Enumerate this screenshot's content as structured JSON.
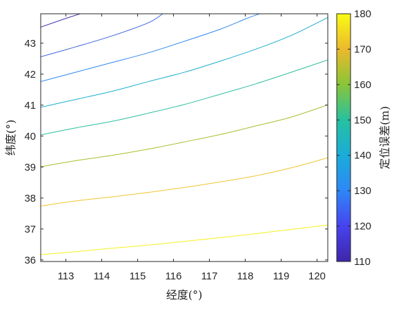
{
  "chart_data": {
    "type": "contour",
    "xlabel": "经度(°)",
    "ylabel": "纬度(°)",
    "colorbar_label": "定位误差(m)",
    "xlim": [
      112.3,
      120.3
    ],
    "ylim": [
      35.95,
      43.95
    ],
    "x_ticks": [
      "113",
      "114",
      "115",
      "116",
      "117",
      "118",
      "119",
      "120"
    ],
    "y_ticks": [
      "36",
      "37",
      "38",
      "39",
      "40",
      "41",
      "42",
      "43"
    ],
    "colorbar_range": [
      110,
      180
    ],
    "colorbar_ticks": [
      "110",
      "120",
      "130",
      "140",
      "150",
      "160",
      "170",
      "180"
    ],
    "colormap": [
      "#3e26a8",
      "#4743f0",
      "#2e87f7",
      "#1aacd9",
      "#27c1a0",
      "#89c538",
      "#ecb92c",
      "#f9fb15"
    ],
    "grid": false,
    "levels": [
      {
        "value": 175,
        "color": "#f5f01d",
        "points": [
          [
            112.3,
            36.17
          ],
          [
            113.3,
            36.27
          ],
          [
            114.3,
            36.38
          ],
          [
            115.3,
            36.48
          ],
          [
            116.3,
            36.6
          ],
          [
            117.3,
            36.72
          ],
          [
            118.3,
            36.85
          ],
          [
            119.3,
            36.99
          ],
          [
            120.3,
            37.13
          ]
        ]
      },
      {
        "value": 167,
        "color": "#efc52e",
        "points": [
          [
            112.3,
            37.74
          ],
          [
            113.3,
            37.91
          ],
          [
            114.3,
            38.04
          ],
          [
            115.3,
            38.18
          ],
          [
            116.3,
            38.34
          ],
          [
            117.3,
            38.52
          ],
          [
            118.3,
            38.72
          ],
          [
            119.3,
            38.98
          ],
          [
            120.3,
            39.3
          ]
        ]
      },
      {
        "value": 157,
        "color": "#a8be2e",
        "points": [
          [
            112.3,
            39.01
          ],
          [
            113.3,
            39.21
          ],
          [
            114.3,
            39.38
          ],
          [
            115.3,
            39.58
          ],
          [
            116.3,
            39.81
          ],
          [
            117.3,
            40.05
          ],
          [
            118.3,
            40.33
          ],
          [
            119.3,
            40.62
          ],
          [
            120.3,
            41.01
          ]
        ]
      },
      {
        "value": 149,
        "color": "#2bbc9e",
        "points": [
          [
            112.3,
            40.04
          ],
          [
            113.3,
            40.27
          ],
          [
            114.3,
            40.48
          ],
          [
            115.3,
            40.74
          ],
          [
            116.3,
            41.02
          ],
          [
            117.3,
            41.35
          ],
          [
            118.3,
            41.69
          ],
          [
            119.3,
            42.07
          ],
          [
            120.3,
            42.46
          ]
        ]
      },
      {
        "value": 141,
        "color": "#19aecd",
        "points": [
          [
            112.3,
            40.93
          ],
          [
            113.3,
            41.19
          ],
          [
            114.3,
            41.45
          ],
          [
            115.3,
            41.76
          ],
          [
            116.3,
            42.06
          ],
          [
            117.3,
            42.42
          ],
          [
            118.3,
            42.81
          ],
          [
            119.3,
            43.26
          ],
          [
            120.3,
            43.83
          ]
        ]
      },
      {
        "value": 132,
        "color": "#2e87ee",
        "points": [
          [
            112.3,
            41.76
          ],
          [
            113.3,
            42.07
          ],
          [
            114.3,
            42.38
          ],
          [
            115.3,
            42.69
          ],
          [
            116.3,
            43.06
          ],
          [
            117.3,
            43.45
          ],
          [
            118.0,
            43.78
          ],
          [
            118.4,
            43.95
          ]
        ]
      },
      {
        "value": 123,
        "color": "#3c63dc",
        "points": [
          [
            112.3,
            42.56
          ],
          [
            113.3,
            42.89
          ],
          [
            114.3,
            43.24
          ],
          [
            115.3,
            43.66
          ],
          [
            115.7,
            43.95
          ]
        ]
      },
      {
        "value": 115,
        "color": "#3f35b0",
        "points": [
          [
            112.3,
            43.52
          ],
          [
            113.0,
            43.8
          ],
          [
            113.4,
            43.95
          ]
        ]
      }
    ]
  }
}
